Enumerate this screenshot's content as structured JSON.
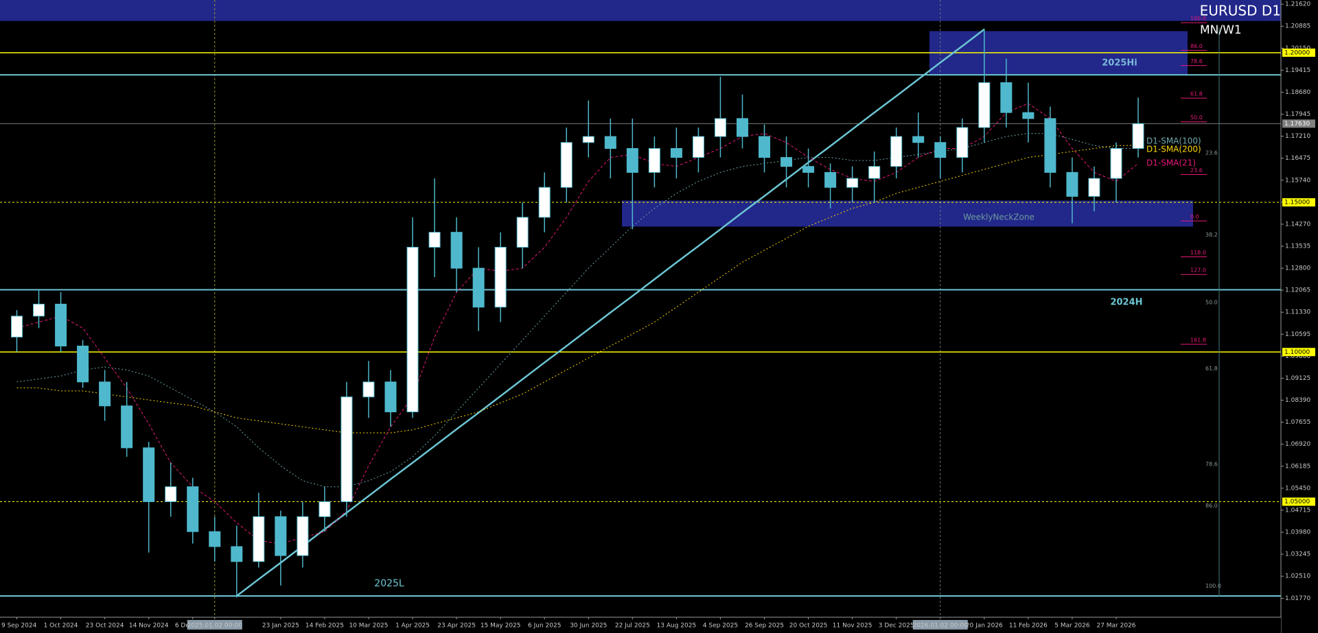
{
  "chart_data": {
    "type": "candlestick",
    "title": "EURUSD D1",
    "subtitle": "MN/W1",
    "categories": [
      "9 Sep 2024",
      null,
      "1 Oct 2024",
      null,
      "23 Oct 2024",
      null,
      "14 Nov 2024",
      null,
      "6 Dec 2024",
      "2025.01.02 00:00",
      null,
      null,
      "23 Jan 2025",
      null,
      "14 Feb 2025",
      null,
      "10 Mar 2025",
      null,
      "1 Apr 2025",
      null,
      "23 Apr 2025",
      null,
      "15 May 2025",
      null,
      "6 Jun 2025",
      null,
      "30 Jun 2025",
      null,
      "22 Jul 2025",
      null,
      "13 Aug 2025",
      null,
      "4 Sep 2025",
      null,
      "26 Sep 2025",
      null,
      "20 Oct 2025",
      null,
      "11 Nov 2025",
      null,
      "3 Dec 2025",
      null,
      "2026.01.02 00:00",
      null,
      "20 Jan 2026",
      null,
      "11 Feb 2026",
      null,
      "5 Mar 2026",
      null,
      "27 Mar 2026",
      null
    ],
    "open": [
      1.105,
      1.112,
      1.116,
      1.102,
      1.09,
      1.082,
      1.068,
      1.05,
      1.055,
      1.04,
      1.035,
      1.03,
      1.045,
      1.032,
      1.045,
      1.05,
      1.085,
      1.09,
      1.08,
      1.135,
      1.14,
      1.128,
      1.115,
      1.135,
      1.145,
      1.155,
      1.17,
      1.172,
      1.168,
      1.16,
      1.168,
      1.165,
      1.172,
      1.178,
      1.172,
      1.165,
      1.162,
      1.16,
      1.155,
      1.158,
      1.162,
      1.172,
      1.17,
      1.165,
      1.175,
      1.19,
      1.18,
      1.178,
      1.16,
      1.152,
      1.158,
      1.168
    ],
    "high": [
      1.114,
      1.121,
      1.12,
      1.104,
      1.094,
      1.09,
      1.07,
      1.063,
      1.058,
      1.045,
      1.042,
      1.053,
      1.047,
      1.05,
      1.055,
      1.09,
      1.097,
      1.094,
      1.145,
      1.158,
      1.145,
      1.135,
      1.14,
      1.15,
      1.16,
      1.175,
      1.184,
      1.178,
      1.178,
      1.172,
      1.175,
      1.175,
      1.192,
      1.186,
      1.176,
      1.172,
      1.168,
      1.163,
      1.162,
      1.167,
      1.175,
      1.18,
      1.172,
      1.178,
      1.208,
      1.198,
      1.19,
      1.182,
      1.165,
      1.162,
      1.17,
      1.185
    ],
    "low": [
      1.1,
      1.108,
      1.1,
      1.088,
      1.077,
      1.065,
      1.033,
      1.045,
      1.036,
      1.03,
      1.018,
      1.028,
      1.022,
      1.028,
      1.04,
      1.045,
      1.078,
      1.075,
      1.078,
      1.125,
      1.12,
      1.107,
      1.11,
      1.128,
      1.14,
      1.15,
      1.165,
      1.158,
      1.141,
      1.155,
      1.158,
      1.16,
      1.165,
      1.168,
      1.16,
      1.155,
      1.155,
      1.148,
      1.15,
      1.15,
      1.158,
      1.165,
      1.158,
      1.16,
      1.17,
      1.175,
      1.17,
      1.155,
      1.143,
      1.147,
      1.15,
      1.165
    ],
    "close": [
      1.112,
      1.116,
      1.102,
      1.09,
      1.082,
      1.068,
      1.05,
      1.055,
      1.04,
      1.035,
      1.03,
      1.045,
      1.032,
      1.045,
      1.05,
      1.085,
      1.09,
      1.08,
      1.135,
      1.14,
      1.128,
      1.115,
      1.135,
      1.145,
      1.155,
      1.17,
      1.172,
      1.168,
      1.16,
      1.168,
      1.165,
      1.172,
      1.178,
      1.172,
      1.165,
      1.162,
      1.16,
      1.155,
      1.158,
      1.162,
      1.172,
      1.17,
      1.165,
      1.175,
      1.19,
      1.18,
      1.178,
      1.16,
      1.152,
      1.158,
      1.168,
      1.1763
    ],
    "up_color": "#ffffff",
    "down_color": "#4fb8cc",
    "ylim": [
      1.0114,
      1.2176
    ],
    "yticks": [
      {
        "value": 1.2162,
        "label": "1.21620"
      },
      1.20885,
      {
        "value": 1.2015,
        "label": "1.20150"
      },
      1.19415,
      {
        "value": 1.1868,
        "label": "1.18680"
      },
      1.17945,
      {
        "value": 1.1721,
        "label": "1.17210"
      },
      1.16475,
      {
        "value": 1.1574,
        "label": "1.15740"
      },
      1.15005,
      {
        "value": 1.1427,
        "label": "1.14270"
      },
      1.13535,
      {
        "value": 1.128,
        "label": "1.12800"
      },
      1.12065,
      {
        "value": 1.1133,
        "label": "1.11330"
      },
      1.10595,
      {
        "value": 1.0986,
        "label": "1.09860"
      },
      1.09125,
      {
        "value": 1.0839,
        "label": "1.08390"
      },
      1.07655,
      {
        "value": 1.0692,
        "label": "1.06920"
      },
      1.06185,
      {
        "value": 1.0545,
        "label": "1.05450"
      },
      1.04715,
      {
        "value": 1.0398,
        "label": "1.03980"
      },
      1.03245,
      {
        "value": 1.0251,
        "label": "1.02510"
      },
      {
        "value": 1.0177,
        "label": "1.01770"
      }
    ],
    "grid": false,
    "series": [
      {
        "name": "D1-SMA(100)",
        "color": "#6fa8b0",
        "dash": "2 3",
        "values": [
          1.09,
          1.091,
          1.092,
          1.094,
          1.095,
          1.094,
          1.092,
          1.088,
          1.084,
          1.08,
          1.075,
          1.068,
          1.062,
          1.057,
          1.055,
          1.055,
          1.057,
          1.06,
          1.065,
          1.072,
          1.08,
          1.088,
          1.096,
          1.104,
          1.112,
          1.12,
          1.128,
          1.135,
          1.142,
          1.148,
          1.153,
          1.157,
          1.16,
          1.162,
          1.163,
          1.164,
          1.165,
          1.165,
          1.164,
          1.164,
          1.165,
          1.166,
          1.167,
          1.168,
          1.17,
          1.172,
          1.173,
          1.173,
          1.171,
          1.169,
          1.168,
          1.168
        ]
      },
      {
        "name": "D1-SMA(200)",
        "color": "#ffd700",
        "dash": "2 3",
        "values": [
          1.088,
          1.088,
          1.087,
          1.087,
          1.086,
          1.085,
          1.084,
          1.083,
          1.082,
          1.08,
          1.078,
          1.077,
          1.076,
          1.075,
          1.074,
          1.073,
          1.073,
          1.073,
          1.074,
          1.076,
          1.078,
          1.08,
          1.083,
          1.086,
          1.09,
          1.094,
          1.098,
          1.102,
          1.106,
          1.11,
          1.115,
          1.12,
          1.125,
          1.13,
          1.134,
          1.138,
          1.142,
          1.145,
          1.148,
          1.15,
          1.153,
          1.155,
          1.157,
          1.159,
          1.161,
          1.163,
          1.165,
          1.166,
          1.167,
          1.168,
          1.169,
          1.169
        ]
      },
      {
        "name": "D1-SMA(21)",
        "color": "#e8197a",
        "dash": "4 3",
        "values": [
          1.108,
          1.11,
          1.112,
          1.108,
          1.098,
          1.088,
          1.076,
          1.063,
          1.055,
          1.05,
          1.043,
          1.037,
          1.036,
          1.038,
          1.04,
          1.047,
          1.062,
          1.075,
          1.085,
          1.105,
          1.12,
          1.128,
          1.127,
          1.128,
          1.135,
          1.145,
          1.157,
          1.165,
          1.166,
          1.163,
          1.162,
          1.165,
          1.168,
          1.172,
          1.173,
          1.17,
          1.165,
          1.161,
          1.158,
          1.157,
          1.16,
          1.165,
          1.168,
          1.168,
          1.172,
          1.18,
          1.183,
          1.178,
          1.168,
          1.16,
          1.157,
          1.163
        ]
      }
    ],
    "trendline": {
      "color": "#6cc6d4",
      "values": [
        null,
        null,
        null,
        null,
        null,
        null,
        null,
        null,
        null,
        null,
        1.0185,
        1.0241,
        1.0296,
        1.0352,
        1.0408,
        1.0463,
        1.0519,
        1.0575,
        1.063,
        1.0686,
        1.0742,
        1.0797,
        1.0853,
        1.0909,
        1.0965,
        1.102,
        1.1076,
        1.1132,
        1.1187,
        1.1243,
        1.1299,
        1.1354,
        1.141,
        1.1466,
        1.1521,
        1.1577,
        1.1633,
        1.1688,
        1.1744,
        1.18,
        1.1855,
        1.1911,
        1.1967,
        1.2022,
        1.2078,
        null,
        null,
        null,
        null,
        null,
        null,
        null
      ]
    },
    "levels": [
      {
        "value": 1.2,
        "label": "1.20000",
        "color": "#ffff00",
        "dash": "none"
      },
      {
        "value": 1.15,
        "label": "1.15000",
        "color": "#ffff00",
        "dash": "3 3"
      },
      {
        "value": 1.1,
        "label": "1.10000",
        "color": "#ffff00",
        "dash": "none"
      },
      {
        "value": 1.05,
        "label": "1.05000",
        "color": "#ffff00",
        "dash": "3 3"
      }
    ],
    "current_price": {
      "value": 1.1763,
      "label": "1.17630",
      "color": "#808080"
    },
    "hlines": [
      {
        "value": 1.1926,
        "color": "#6cc6d4"
      },
      {
        "value": 1.1208,
        "color": "#6cc6d4"
      },
      {
        "value": 1.0185,
        "color": "#6cc6d4"
      }
    ],
    "zones": [
      {
        "top": 1.2176,
        "bottom": 1.2106,
        "color": "#22278a"
      },
      {
        "top": 1.2072,
        "bottom": 1.1926,
        "color": "#22278a",
        "label": "2025Hi"
      },
      {
        "top": 1.1506,
        "bottom": 1.1419,
        "color": "#22278a",
        "label": "WeeklyNeckZone"
      }
    ],
    "annotations": [
      "2024H",
      "2025L"
    ],
    "fib_pink": [
      {
        "text": "100.0",
        "price": 1.21
      },
      {
        "text": "86.0",
        "price": 1.2008
      },
      {
        "text": "78.6",
        "price": 1.1957
      },
      {
        "text": "61.8",
        "price": 1.1848
      },
      {
        "text": "50.0",
        "price": 1.1769
      },
      {
        "text": "23.6",
        "price": 1.1593
      },
      {
        "text": "0.0",
        "price": 1.1438
      },
      {
        "text": "118.0",
        "price": 1.1318
      },
      {
        "text": "127.0",
        "price": 1.1259
      },
      {
        "text": "161.8",
        "price": 1.1026
      }
    ],
    "fib_gray": [
      {
        "text": "23.6",
        "price": 1.1651
      },
      {
        "text": "38.2",
        "price": 1.1377
      },
      {
        "text": "50.0",
        "price": 1.1152
      },
      {
        "text": "61.8",
        "price": 1.0931
      },
      {
        "text": "78.6",
        "price": 1.0611
      },
      {
        "text": "86.0",
        "price": 1.0473
      },
      {
        "text": "100.0",
        "price": 1.0204
      }
    ]
  }
}
